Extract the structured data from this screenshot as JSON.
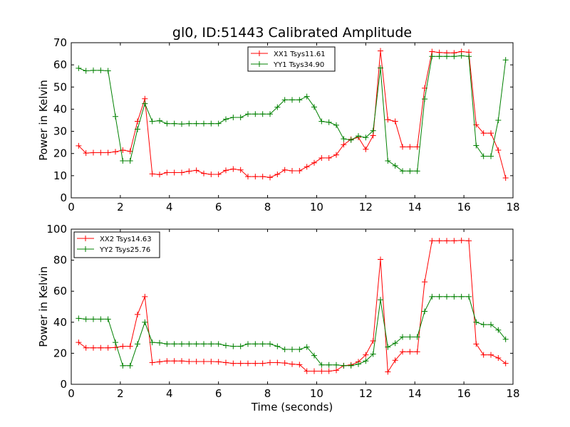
{
  "figure": {
    "title": "gl0, ID:51443 Calibrated Amplitude",
    "xlabel": "Time (seconds)"
  },
  "colors": {
    "red": "#ff0000",
    "green": "#008000"
  },
  "chart_data": [
    {
      "type": "line",
      "title": "gl0, ID:51443 Calibrated Amplitude",
      "xlabel": "",
      "ylabel": "Power in Kelvin",
      "xlim": [
        0,
        18
      ],
      "ylim": [
        0,
        70
      ],
      "xticks": [
        "0",
        "2",
        "4",
        "6",
        "8",
        "10",
        "12",
        "14",
        "16",
        "18"
      ],
      "yticks": [
        "0",
        "10",
        "20",
        "30",
        "40",
        "50",
        "60",
        "70"
      ],
      "legend_position": "top-center",
      "grid": false,
      "series": [
        {
          "name": "XX1 Tsys11.61",
          "color": "#ff0000",
          "x": [
            0.3,
            0.6,
            0.9,
            1.2,
            1.5,
            1.8,
            2.1,
            2.4,
            2.7,
            3.0,
            3.3,
            3.6,
            3.9,
            4.2,
            4.5,
            4.8,
            5.1,
            5.4,
            5.7,
            6.0,
            6.3,
            6.6,
            6.9,
            7.2,
            7.5,
            7.8,
            8.1,
            8.4,
            8.7,
            9.0,
            9.3,
            9.6,
            9.9,
            10.2,
            10.5,
            10.8,
            11.1,
            11.4,
            11.7,
            12.0,
            12.3,
            12.6,
            12.9,
            13.2,
            13.5,
            13.8,
            14.1,
            14.4,
            14.7,
            15.0,
            15.3,
            15.6,
            15.9,
            16.2,
            16.5,
            16.8,
            17.1,
            17.4,
            17.7
          ],
          "y": [
            23.5,
            20.2,
            20.4,
            20.4,
            20.4,
            20.8,
            21.5,
            21.0,
            34.5,
            44.7,
            10.8,
            10.5,
            11.4,
            11.4,
            11.4,
            12.0,
            12.4,
            11.0,
            10.6,
            10.6,
            12.4,
            13.0,
            12.6,
            9.6,
            9.6,
            9.6,
            9.2,
            10.6,
            12.6,
            12.2,
            12.2,
            14.0,
            15.8,
            18.0,
            18.0,
            19.4,
            24.0,
            26.4,
            27.3,
            21.9,
            28.1,
            66.3,
            35.3,
            34.5,
            23.0,
            23.0,
            23.0,
            49.5,
            66.0,
            65.6,
            65.4,
            65.4,
            66.0,
            65.7,
            33.0,
            29.2,
            29.2,
            21.5,
            9.0
          ]
        },
        {
          "name": "YY1 Tsys34.90",
          "color": "#008000",
          "x": [
            0.3,
            0.6,
            0.9,
            1.2,
            1.5,
            1.8,
            2.1,
            2.4,
            2.7,
            3.0,
            3.3,
            3.6,
            3.9,
            4.2,
            4.5,
            4.8,
            5.1,
            5.4,
            5.7,
            6.0,
            6.3,
            6.6,
            6.9,
            7.2,
            7.5,
            7.8,
            8.1,
            8.4,
            8.7,
            9.0,
            9.3,
            9.6,
            9.9,
            10.2,
            10.5,
            10.8,
            11.1,
            11.4,
            11.7,
            12.0,
            12.3,
            12.6,
            12.9,
            13.2,
            13.5,
            13.8,
            14.1,
            14.4,
            14.7,
            15.0,
            15.3,
            15.6,
            15.9,
            16.2,
            16.5,
            16.8,
            17.1,
            17.4,
            17.7
          ],
          "y": [
            58.5,
            57.3,
            57.5,
            57.5,
            57.3,
            36.7,
            16.7,
            16.7,
            31.0,
            42.5,
            34.5,
            34.8,
            33.5,
            33.5,
            33.3,
            33.5,
            33.5,
            33.5,
            33.5,
            33.5,
            35.5,
            36.3,
            36.3,
            37.8,
            37.8,
            37.8,
            37.8,
            40.9,
            44.2,
            44.2,
            44.2,
            45.7,
            41.0,
            34.5,
            34.1,
            32.8,
            26.6,
            26.1,
            27.9,
            27.2,
            30.3,
            58.6,
            16.7,
            14.5,
            12.1,
            12.1,
            12.1,
            44.6,
            63.8,
            63.8,
            63.8,
            63.8,
            64.1,
            63.8,
            23.6,
            18.8,
            18.8,
            35.0,
            62.2
          ]
        }
      ]
    },
    {
      "type": "line",
      "title": "",
      "xlabel": "Time (seconds)",
      "ylabel": "Power in Kelvin",
      "xlim": [
        0,
        18
      ],
      "ylim": [
        0,
        100
      ],
      "xticks": [
        "0",
        "2",
        "4",
        "6",
        "8",
        "10",
        "12",
        "14",
        "16",
        "18"
      ],
      "yticks": [
        "0",
        "20",
        "40",
        "60",
        "80",
        "100"
      ],
      "legend_position": "top-left",
      "grid": false,
      "series": [
        {
          "name": "XX2 Tsys14.63",
          "color": "#ff0000",
          "x": [
            0.3,
            0.6,
            0.9,
            1.2,
            1.5,
            1.8,
            2.1,
            2.4,
            2.7,
            3.0,
            3.3,
            3.6,
            3.9,
            4.2,
            4.5,
            4.8,
            5.1,
            5.4,
            5.7,
            6.0,
            6.3,
            6.6,
            6.9,
            7.2,
            7.5,
            7.8,
            8.1,
            8.4,
            8.7,
            9.0,
            9.3,
            9.6,
            9.9,
            10.2,
            10.5,
            10.8,
            11.1,
            11.4,
            11.7,
            12.0,
            12.3,
            12.6,
            12.9,
            13.2,
            13.5,
            13.8,
            14.1,
            14.4,
            14.7,
            15.0,
            15.3,
            15.6,
            15.9,
            16.2,
            16.5,
            16.8,
            17.1,
            17.4,
            17.7
          ],
          "y": [
            27.0,
            23.5,
            23.5,
            23.5,
            23.5,
            23.7,
            24.5,
            24.5,
            45.0,
            56.5,
            14.0,
            14.5,
            15.0,
            15.0,
            15.0,
            14.7,
            14.7,
            14.7,
            14.7,
            14.5,
            14.0,
            13.5,
            13.5,
            13.5,
            13.5,
            13.5,
            14.0,
            14.0,
            13.7,
            13.0,
            12.7,
            8.5,
            8.5,
            8.5,
            8.5,
            9.0,
            12.0,
            12.5,
            14.5,
            19.0,
            28.0,
            80.5,
            8.0,
            15.5,
            21.0,
            21.0,
            21.0,
            66.0,
            92.5,
            92.5,
            92.5,
            92.5,
            92.7,
            92.5,
            26.0,
            19.0,
            19.0,
            17.0,
            13.5
          ]
        },
        {
          "name": "YY2 Tsys25.76",
          "color": "#008000",
          "x": [
            0.3,
            0.6,
            0.9,
            1.2,
            1.5,
            1.8,
            2.1,
            2.4,
            2.7,
            3.0,
            3.3,
            3.6,
            3.9,
            4.2,
            4.5,
            4.8,
            5.1,
            5.4,
            5.7,
            6.0,
            6.3,
            6.6,
            6.9,
            7.2,
            7.5,
            7.8,
            8.1,
            8.4,
            8.7,
            9.0,
            9.3,
            9.6,
            9.9,
            10.2,
            10.5,
            10.8,
            11.1,
            11.4,
            11.7,
            12.0,
            12.3,
            12.6,
            12.9,
            13.2,
            13.5,
            13.8,
            14.1,
            14.4,
            14.7,
            15.0,
            15.3,
            15.6,
            15.9,
            16.2,
            16.5,
            16.8,
            17.1,
            17.4,
            17.7
          ],
          "y": [
            42.5,
            42.0,
            42.0,
            42.0,
            42.0,
            27.0,
            12.0,
            12.0,
            26.0,
            40.0,
            27.0,
            26.7,
            26.0,
            26.0,
            26.0,
            26.0,
            26.0,
            26.0,
            26.0,
            26.0,
            25.0,
            24.5,
            24.5,
            26.0,
            26.0,
            26.0,
            26.0,
            24.5,
            22.5,
            22.5,
            22.5,
            24.0,
            18.5,
            12.5,
            12.5,
            12.5,
            12.0,
            12.0,
            13.0,
            15.0,
            19.5,
            54.5,
            24.0,
            26.5,
            30.5,
            30.5,
            30.5,
            47.0,
            56.5,
            56.5,
            56.5,
            56.5,
            56.5,
            56.5,
            40.0,
            38.5,
            38.5,
            35.0,
            29.0
          ]
        }
      ]
    }
  ]
}
